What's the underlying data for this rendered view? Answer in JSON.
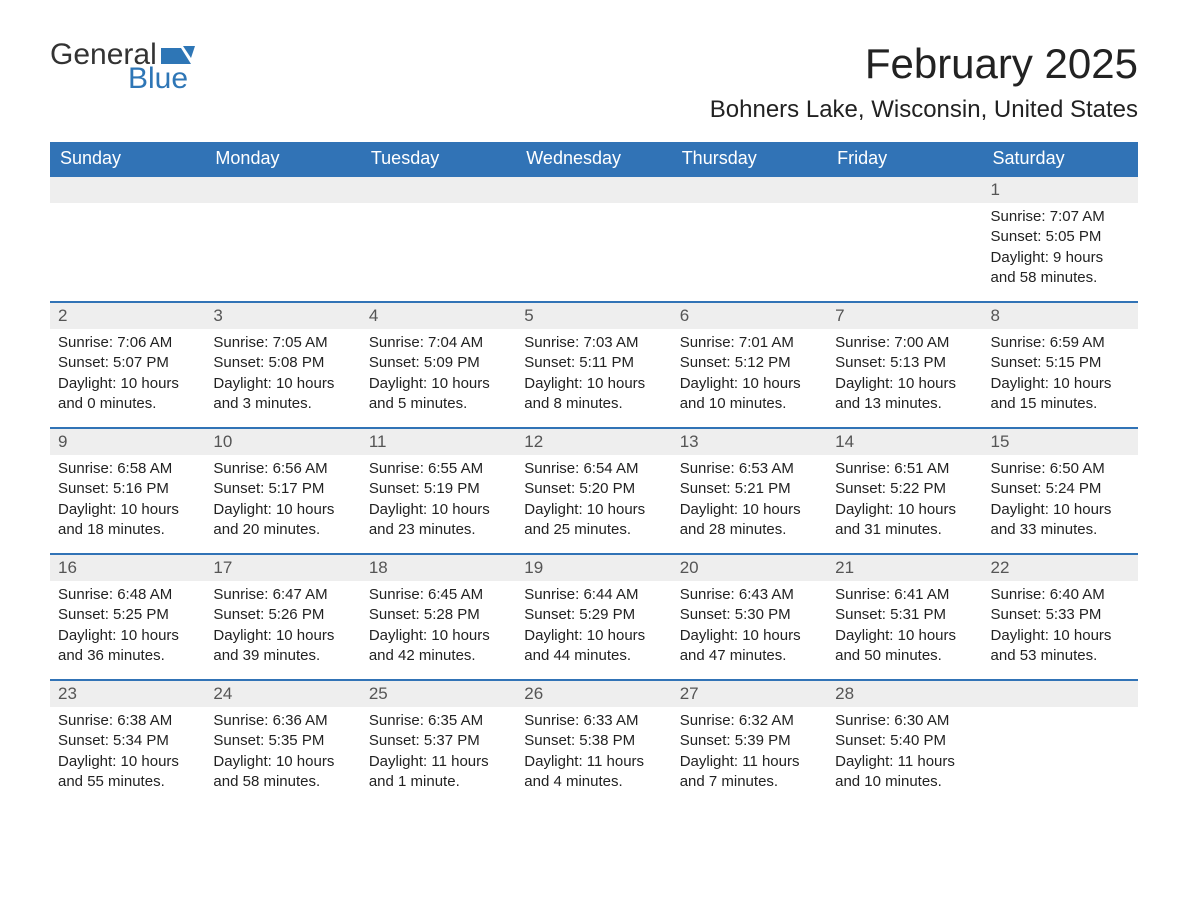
{
  "brand": {
    "word1": "General",
    "word2": "Blue",
    "accent_color": "#2e76b6"
  },
  "title": "February 2025",
  "location": "Bohners Lake, Wisconsin, United States",
  "header_bg": "#3173b6",
  "header_fg": "#ffffff",
  "daybar_bg": "#eeeeee",
  "row_border": "#3173b6",
  "weekdays": [
    "Sunday",
    "Monday",
    "Tuesday",
    "Wednesday",
    "Thursday",
    "Friday",
    "Saturday"
  ],
  "weeks": [
    [
      {
        "empty": true
      },
      {
        "empty": true
      },
      {
        "empty": true
      },
      {
        "empty": true
      },
      {
        "empty": true
      },
      {
        "empty": true
      },
      {
        "day": "1",
        "sunrise": "7:07 AM",
        "sunset": "5:05 PM",
        "daylight": "9 hours and 58 minutes."
      }
    ],
    [
      {
        "day": "2",
        "sunrise": "7:06 AM",
        "sunset": "5:07 PM",
        "daylight": "10 hours and 0 minutes."
      },
      {
        "day": "3",
        "sunrise": "7:05 AM",
        "sunset": "5:08 PM",
        "daylight": "10 hours and 3 minutes."
      },
      {
        "day": "4",
        "sunrise": "7:04 AM",
        "sunset": "5:09 PM",
        "daylight": "10 hours and 5 minutes."
      },
      {
        "day": "5",
        "sunrise": "7:03 AM",
        "sunset": "5:11 PM",
        "daylight": "10 hours and 8 minutes."
      },
      {
        "day": "6",
        "sunrise": "7:01 AM",
        "sunset": "5:12 PM",
        "daylight": "10 hours and 10 minutes."
      },
      {
        "day": "7",
        "sunrise": "7:00 AM",
        "sunset": "5:13 PM",
        "daylight": "10 hours and 13 minutes."
      },
      {
        "day": "8",
        "sunrise": "6:59 AM",
        "sunset": "5:15 PM",
        "daylight": "10 hours and 15 minutes."
      }
    ],
    [
      {
        "day": "9",
        "sunrise": "6:58 AM",
        "sunset": "5:16 PM",
        "daylight": "10 hours and 18 minutes."
      },
      {
        "day": "10",
        "sunrise": "6:56 AM",
        "sunset": "5:17 PM",
        "daylight": "10 hours and 20 minutes."
      },
      {
        "day": "11",
        "sunrise": "6:55 AM",
        "sunset": "5:19 PM",
        "daylight": "10 hours and 23 minutes."
      },
      {
        "day": "12",
        "sunrise": "6:54 AM",
        "sunset": "5:20 PM",
        "daylight": "10 hours and 25 minutes."
      },
      {
        "day": "13",
        "sunrise": "6:53 AM",
        "sunset": "5:21 PM",
        "daylight": "10 hours and 28 minutes."
      },
      {
        "day": "14",
        "sunrise": "6:51 AM",
        "sunset": "5:22 PM",
        "daylight": "10 hours and 31 minutes."
      },
      {
        "day": "15",
        "sunrise": "6:50 AM",
        "sunset": "5:24 PM",
        "daylight": "10 hours and 33 minutes."
      }
    ],
    [
      {
        "day": "16",
        "sunrise": "6:48 AM",
        "sunset": "5:25 PM",
        "daylight": "10 hours and 36 minutes."
      },
      {
        "day": "17",
        "sunrise": "6:47 AM",
        "sunset": "5:26 PM",
        "daylight": "10 hours and 39 minutes."
      },
      {
        "day": "18",
        "sunrise": "6:45 AM",
        "sunset": "5:28 PM",
        "daylight": "10 hours and 42 minutes."
      },
      {
        "day": "19",
        "sunrise": "6:44 AM",
        "sunset": "5:29 PM",
        "daylight": "10 hours and 44 minutes."
      },
      {
        "day": "20",
        "sunrise": "6:43 AM",
        "sunset": "5:30 PM",
        "daylight": "10 hours and 47 minutes."
      },
      {
        "day": "21",
        "sunrise": "6:41 AM",
        "sunset": "5:31 PM",
        "daylight": "10 hours and 50 minutes."
      },
      {
        "day": "22",
        "sunrise": "6:40 AM",
        "sunset": "5:33 PM",
        "daylight": "10 hours and 53 minutes."
      }
    ],
    [
      {
        "day": "23",
        "sunrise": "6:38 AM",
        "sunset": "5:34 PM",
        "daylight": "10 hours and 55 minutes."
      },
      {
        "day": "24",
        "sunrise": "6:36 AM",
        "sunset": "5:35 PM",
        "daylight": "10 hours and 58 minutes."
      },
      {
        "day": "25",
        "sunrise": "6:35 AM",
        "sunset": "5:37 PM",
        "daylight": "11 hours and 1 minute."
      },
      {
        "day": "26",
        "sunrise": "6:33 AM",
        "sunset": "5:38 PM",
        "daylight": "11 hours and 4 minutes."
      },
      {
        "day": "27",
        "sunrise": "6:32 AM",
        "sunset": "5:39 PM",
        "daylight": "11 hours and 7 minutes."
      },
      {
        "day": "28",
        "sunrise": "6:30 AM",
        "sunset": "5:40 PM",
        "daylight": "11 hours and 10 minutes."
      },
      {
        "empty": true
      }
    ]
  ],
  "labels": {
    "sunrise": "Sunrise: ",
    "sunset": "Sunset: ",
    "daylight": "Daylight: "
  }
}
